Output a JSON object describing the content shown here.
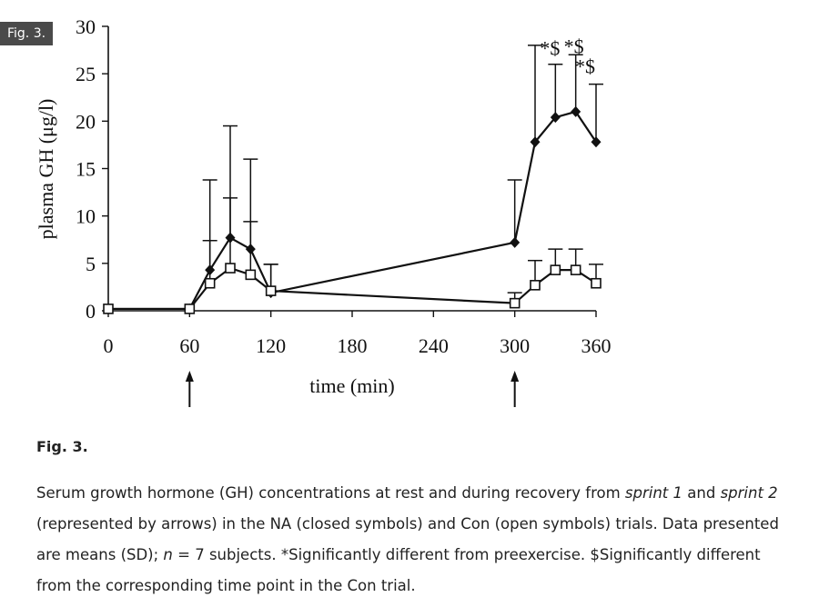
{
  "figure_badge": "Fig. 3.",
  "caption": {
    "title": "Fig. 3.",
    "line1_a": "Serum growth hormone (GH) concentrations at rest and during recovery from ",
    "sprint1": "sprint 1",
    "line1_b": " and ",
    "sprint2": "sprint 2",
    "line2": "(represented by arrows) in the NA (closed symbols) and Con (open symbols) trials. Data presented are means (SD); ",
    "n_label": "n",
    "line3": " = 7 subjects. *Significantly different from preexercise. $Significantly different from the corresponding time point in the Con trial."
  },
  "chart_data": {
    "type": "line",
    "title": "",
    "xlabel": "time (min)",
    "ylabel": "plasma GH (μg/l)",
    "xlim": [
      0,
      360
    ],
    "ylim": [
      0,
      30
    ],
    "xticks": [
      0,
      60,
      120,
      180,
      240,
      300,
      360
    ],
    "yticks": [
      0,
      5,
      10,
      15,
      20,
      25,
      30
    ],
    "arrows_at": [
      60,
      300
    ],
    "series": [
      {
        "name": "NA (closed symbols)",
        "marker": "filled-diamond",
        "x": [
          0,
          60,
          75,
          90,
          105,
          120,
          300,
          315,
          330,
          345,
          360
        ],
        "y": [
          0.2,
          0.2,
          4.3,
          7.7,
          6.5,
          1.9,
          7.2,
          17.8,
          20.4,
          21.0,
          17.8
        ],
        "sd": [
          0,
          0,
          9.5,
          11.8,
          9.5,
          3.0,
          6.6,
          10.2,
          5.6,
          6.0,
          6.1
        ],
        "annotations": [
          {
            "x": 330,
            "text": "*$"
          },
          {
            "x": 345,
            "text": "*$"
          },
          {
            "x": 360,
            "text": "*$"
          }
        ]
      },
      {
        "name": "Con (open symbols)",
        "marker": "open-square",
        "x": [
          0,
          60,
          75,
          90,
          105,
          120,
          300,
          315,
          330,
          345,
          360
        ],
        "y": [
          0.2,
          0.2,
          2.9,
          4.5,
          3.8,
          2.1,
          0.8,
          2.7,
          4.3,
          4.3,
          2.9
        ],
        "sd": [
          0,
          0,
          4.5,
          7.4,
          5.6,
          2.8,
          1.1,
          2.6,
          2.2,
          2.2,
          2.0
        ]
      }
    ]
  }
}
